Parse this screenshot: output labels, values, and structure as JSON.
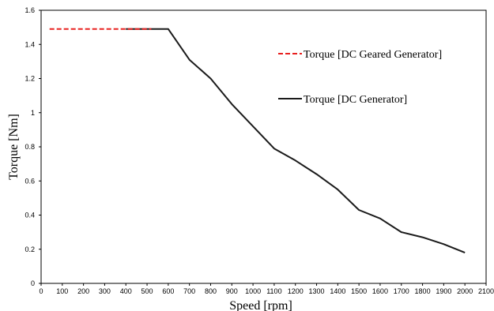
{
  "chart_data": {
    "type": "line",
    "xlabel": "Speed [rpm]",
    "ylabel": "Torque [Nm]",
    "xlim": [
      0,
      2100
    ],
    "ylim": [
      0,
      1.6
    ],
    "x_ticks": [
      "0",
      "100",
      "200",
      "300",
      "400",
      "500",
      "600",
      "700",
      "800",
      "900",
      "1000",
      "1100",
      "1200",
      "1300",
      "1400",
      "1500",
      "1600",
      "1700",
      "1800",
      "1900",
      "2000",
      "2100"
    ],
    "y_ticks": [
      "0",
      "0.2",
      "0.4",
      "0.6",
      "0.8",
      "1",
      "1.2",
      "1.4",
      "1.6"
    ],
    "grid": false,
    "legend_position": "right",
    "series": [
      {
        "name": "Torque [DC Geared Generator]",
        "color": "#e8201f",
        "dash": "dashed",
        "x": [
          40,
          100,
          200,
          300,
          400,
          500,
          520
        ],
        "y": [
          1.49,
          1.49,
          1.49,
          1.49,
          1.49,
          1.49,
          1.49
        ]
      },
      {
        "name": "Torque [DC Generator]",
        "color": "#1a1a1a",
        "dash": "solid",
        "x": [
          400,
          500,
          600,
          700,
          800,
          900,
          1000,
          1100,
          1200,
          1300,
          1400,
          1500,
          1600,
          1700,
          1800,
          1900,
          2000
        ],
        "y": [
          1.49,
          1.49,
          1.49,
          1.31,
          1.2,
          1.05,
          0.92,
          0.79,
          0.72,
          0.64,
          0.55,
          0.43,
          0.38,
          0.3,
          0.27,
          0.23,
          0.18
        ]
      }
    ]
  }
}
